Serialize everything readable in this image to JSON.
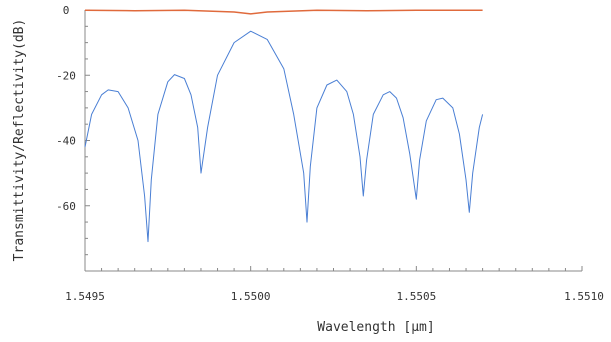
{
  "chart_data": {
    "type": "line",
    "title": "",
    "xlabel": "Wavelength [μm]",
    "ylabel": "Transmittivity/Reflectivity(dB)",
    "xlim": [
      1.5495,
      1.551
    ],
    "ylim": [
      -80,
      0
    ],
    "xticks": [
      1.5495,
      1.55,
      1.5505,
      1.551
    ],
    "xtick_labels": [
      "1.5495",
      "1.5500",
      "1.5505",
      "1.5510"
    ],
    "yticks": [
      0,
      -20,
      -40,
      -60
    ],
    "ytick_labels": [
      "0",
      "-20",
      "-40",
      "-60"
    ],
    "grid": false,
    "legend": "none",
    "series": [
      {
        "color": "#e06a3c",
        "x": [
          1.5495,
          1.54965,
          1.5498,
          1.54995,
          1.55,
          1.55005,
          1.5502,
          1.55035,
          1.5505,
          1.55065,
          1.5507
        ],
        "y": [
          -0.1,
          -0.2,
          -0.1,
          -0.6,
          -1.2,
          -0.6,
          -0.1,
          -0.2,
          -0.1,
          -0.1,
          -0.1
        ]
      },
      {
        "color": "#4a7fd4",
        "x": [
          1.5495,
          1.54952,
          1.54955,
          1.54957,
          1.5496,
          1.54963,
          1.54966,
          1.54968,
          1.54969,
          1.5497,
          1.54972,
          1.54975,
          1.54977,
          1.5498,
          1.54982,
          1.54984,
          1.54985,
          1.54987,
          1.5499,
          1.54995,
          1.55,
          1.55005,
          1.5501,
          1.55013,
          1.55016,
          1.55017,
          1.55018,
          1.5502,
          1.55023,
          1.55026,
          1.55029,
          1.55031,
          1.55033,
          1.55034,
          1.55035,
          1.55037,
          1.5504,
          1.55042,
          1.55044,
          1.55046,
          1.55048,
          1.5505,
          1.55051,
          1.55053,
          1.55056,
          1.55058,
          1.55061,
          1.55063,
          1.55065,
          1.55066,
          1.55067,
          1.55069,
          1.5507
        ],
        "y": [
          -42,
          -32,
          -26,
          -24.5,
          -25,
          -30,
          -40,
          -57,
          -71,
          -52,
          -32,
          -22,
          -19.8,
          -21,
          -26,
          -36,
          -50,
          -36,
          -20,
          -10,
          -6.5,
          -9,
          -18,
          -32,
          -50,
          -65,
          -48,
          -30,
          -23,
          -21.5,
          -25,
          -32,
          -45,
          -57,
          -46,
          -32,
          -26,
          -25,
          -27,
          -33,
          -44,
          -58,
          -46,
          -34,
          -27.5,
          -27,
          -30,
          -38,
          -52,
          -62,
          -50,
          -36,
          -32
        ]
      }
    ]
  }
}
